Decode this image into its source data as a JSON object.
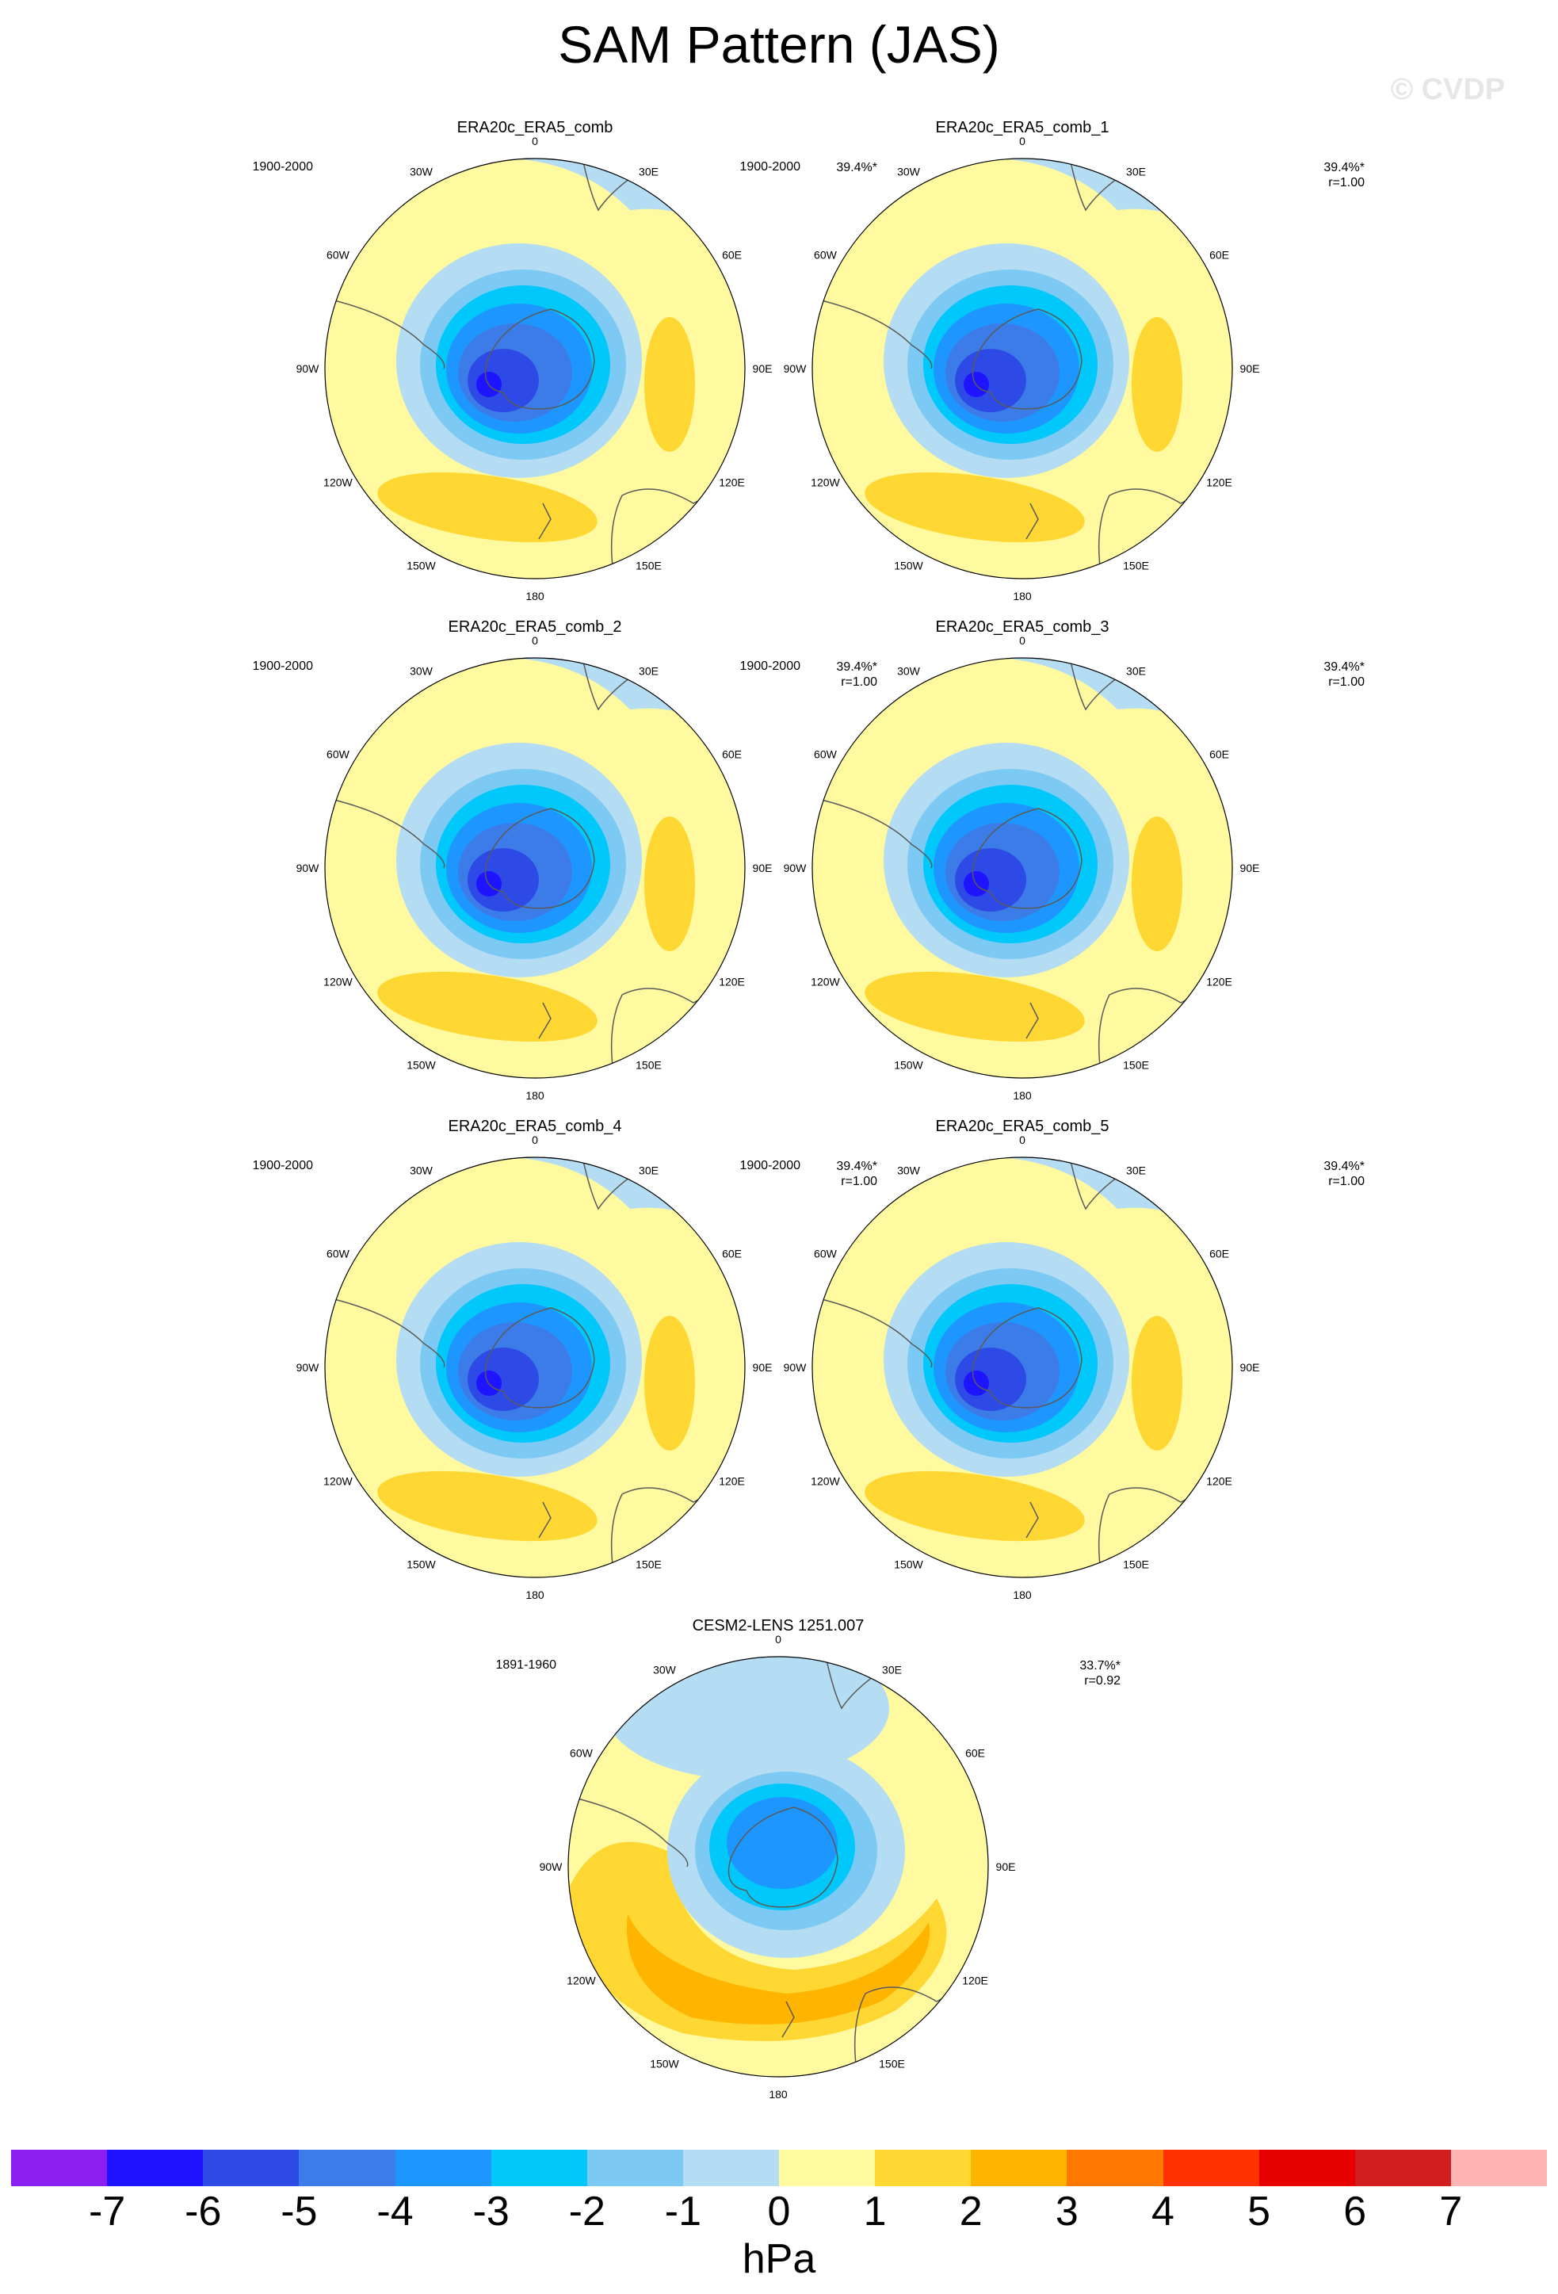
{
  "title": "SAM Pattern (JAS)",
  "watermark": "© CVDP",
  "units": "hPa",
  "panels": [
    {
      "title": "ERA20c_ERA5_comb",
      "period": "1900-2000",
      "pct": "39.4%*",
      "r": ""
    },
    {
      "title": "ERA20c_ERA5_comb_1",
      "period": "1900-2000",
      "pct": "39.4%*",
      "r": "r=1.00"
    },
    {
      "title": "ERA20c_ERA5_comb_2",
      "period": "1900-2000",
      "pct": "39.4%*",
      "r": "r=1.00"
    },
    {
      "title": "ERA20c_ERA5_comb_3",
      "period": "1900-2000",
      "pct": "39.4%*",
      "r": "r=1.00"
    },
    {
      "title": "ERA20c_ERA5_comb_4",
      "period": "1900-2000",
      "pct": "39.4%*",
      "r": "r=1.00"
    },
    {
      "title": "ERA20c_ERA5_comb_5",
      "period": "1900-2000",
      "pct": "39.4%*",
      "r": "r=1.00"
    },
    {
      "title": "CESM2-LENS 1251.007",
      "period": "1891-1960",
      "pct": "33.7%*",
      "r": "r=0.92"
    }
  ],
  "lon_labels": {
    "deg0": "0",
    "e30": "30E",
    "e60": "60E",
    "e90": "90E",
    "e120": "120E",
    "e150": "150E",
    "deg180": "180",
    "w150": "150W",
    "w120": "120W",
    "w90": "90W",
    "w60": "60W",
    "w30": "30W"
  },
  "colorbar": {
    "colors": [
      "#8c1ef0",
      "#1e14ff",
      "#2e4ae6",
      "#3c7ce8",
      "#1e96ff",
      "#00c8fa",
      "#7ccaf3",
      "#b4dcf2",
      "#fff9a0",
      "#ffd732",
      "#ffb400",
      "#ff7800",
      "#ff3200",
      "#e60000",
      "#d21e1e",
      "#ffb4b4"
    ],
    "ticks": [
      "-7",
      "-6",
      "-5",
      "-4",
      "-3",
      "-2",
      "-1",
      "0",
      "1",
      "2",
      "3",
      "4",
      "5",
      "6",
      "7"
    ]
  },
  "legend_colors": {
    "yellow": "#fff9a0",
    "gold": "#ffd732",
    "orange": "#ffb400",
    "lightblue": "#b4dcf2",
    "blue1": "#7ccaf3",
    "blue2": "#00c8fa",
    "blue3": "#1e96ff",
    "blue4": "#3c7ce8",
    "blue5": "#2e4ae6",
    "blue6": "#1e14ff"
  }
}
